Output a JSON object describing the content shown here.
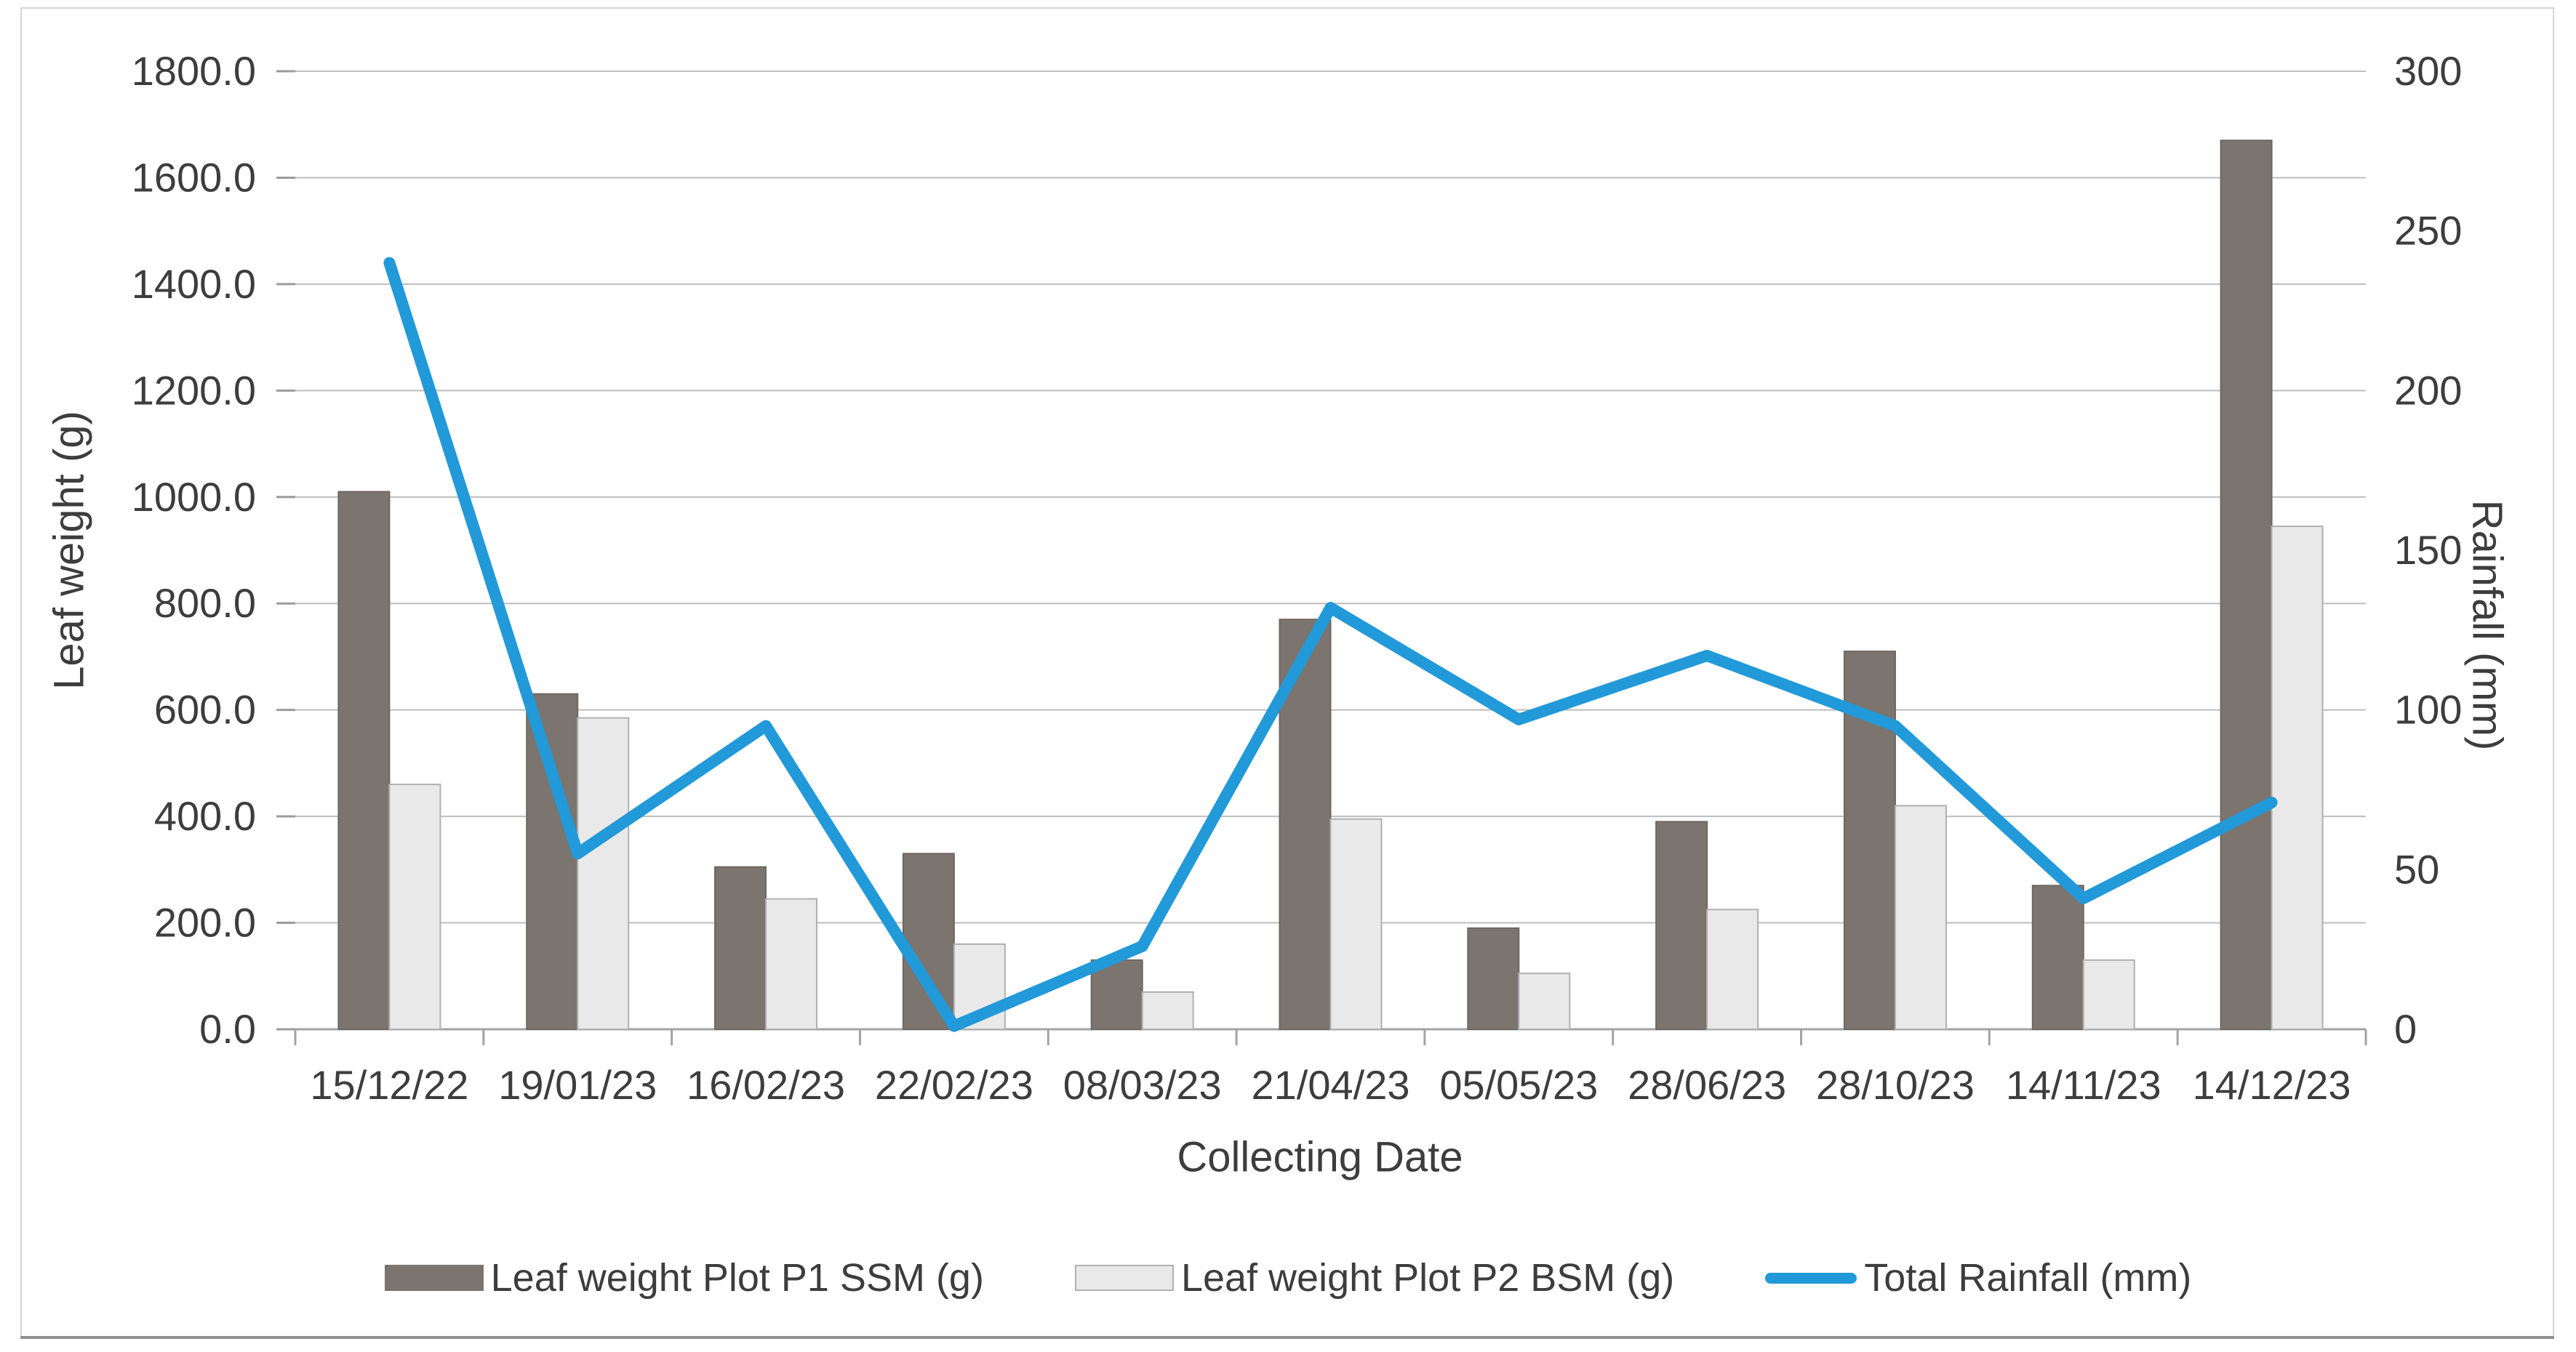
{
  "chart_data": {
    "type": "bar",
    "subtype": "grouped-bars-with-line-overlay",
    "categories": [
      "15/12/22",
      "19/01/23",
      "16/02/23",
      "22/02/23",
      "08/03/23",
      "21/04/23",
      "05/05/23",
      "28/06/23",
      "28/10/23",
      "14/11/23",
      "14/12/23"
    ],
    "series": [
      {
        "name": "Leaf weight Plot P1 SSM (g)",
        "type": "bar",
        "axis": "left",
        "color": "#7b746f",
        "border_color": "#6e6762",
        "values": [
          1010,
          630,
          305,
          330,
          130,
          770,
          190,
          390,
          710,
          270,
          1670
        ]
      },
      {
        "name": "Leaf weight Plot P2 BSM (g)",
        "type": "bar",
        "axis": "left",
        "color": "#e9e9e9",
        "border_color": "#b0b0b0",
        "values": [
          460,
          585,
          245,
          160,
          70,
          395,
          105,
          225,
          420,
          130,
          945
        ]
      },
      {
        "name": "Total Rainfall (mm)",
        "type": "line",
        "axis": "right",
        "color": "#2299d8",
        "values": [
          240,
          55,
          95,
          1,
          26,
          132,
          97,
          117,
          95,
          41,
          71
        ]
      }
    ],
    "xlabel": "Collecting Date",
    "ylabel_left": "Leaf weight (g)",
    "ylabel_right": "Rainfall (mm)",
    "y_left_axis": {
      "min": 0,
      "max": 1800,
      "step": 200,
      "tick_labels": [
        "0.0",
        "200.0",
        "400.0",
        "600.0",
        "800.0",
        "1000.0",
        "1200.0",
        "1400.0",
        "1600.0",
        "1800.0"
      ]
    },
    "y_right_axis": {
      "min": 0,
      "max": 300,
      "step": 50,
      "tick_labels": [
        "0",
        "50",
        "100",
        "150",
        "200",
        "250",
        "300"
      ]
    },
    "grid": true,
    "legend_position": "bottom",
    "colors": {
      "grid_line": "#bdbdbd",
      "axis_line": "#a3a3a3",
      "tick_mark": "#9b9b9b",
      "text": "#3d3d3d",
      "background": "#ffffff"
    }
  }
}
